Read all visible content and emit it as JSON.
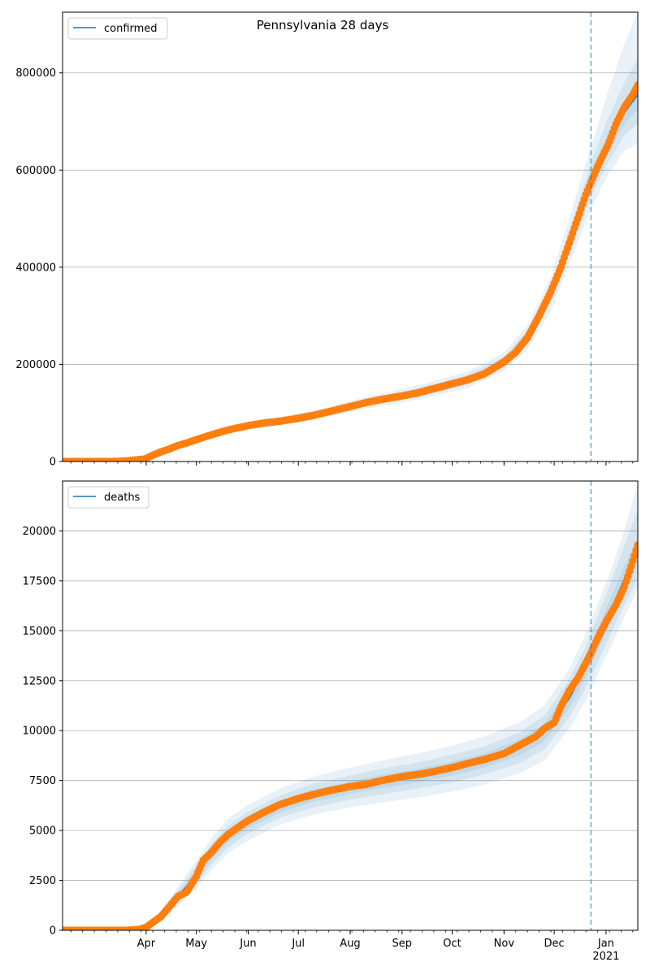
{
  "title": "Pennsylvania 28 days",
  "colors": {
    "model_line": "#1f77b4",
    "band": "#1f77b4",
    "observed": "#ff7f0e",
    "forecast_marker": "#1f77b4",
    "grid": "#b0b0b0"
  },
  "chart_data": [
    {
      "type": "line",
      "legend": "confirmed",
      "legend_position": "top-left",
      "grid": "y",
      "xlim": [
        "2020-02-11",
        "2021-01-20"
      ],
      "ylim": [
        0,
        925000
      ],
      "yticks": [
        0,
        200000,
        400000,
        600000,
        800000
      ],
      "ytick_labels": [
        "0",
        "200000",
        "400000",
        "600000",
        "800000"
      ],
      "forecast_start": "2020-12-23",
      "observed": {
        "x": [
          "2020-02-11",
          "2020-03-01",
          "2020-03-10",
          "2020-03-15",
          "2020-03-20",
          "2020-03-25",
          "2020-03-31",
          "2020-04-05",
          "2020-04-10",
          "2020-04-15",
          "2020-04-20",
          "2020-04-25",
          "2020-05-01",
          "2020-05-10",
          "2020-05-20",
          "2020-06-01",
          "2020-06-10",
          "2020-06-20",
          "2020-07-01",
          "2020-07-10",
          "2020-07-20",
          "2020-08-01",
          "2020-08-10",
          "2020-08-20",
          "2020-09-01",
          "2020-09-10",
          "2020-09-20",
          "2020-10-01",
          "2020-10-10",
          "2020-10-20",
          "2020-11-01",
          "2020-11-08",
          "2020-11-15",
          "2020-11-22",
          "2020-11-29",
          "2020-12-05",
          "2020-12-10",
          "2020-12-15",
          "2020-12-20",
          "2020-12-23",
          "2020-12-28",
          "2021-01-02",
          "2021-01-07",
          "2021-01-12",
          "2021-01-17",
          "2021-01-20"
        ],
        "y": [
          0,
          0,
          0,
          200,
          1200,
          3000,
          5000,
          13000,
          20000,
          26000,
          33000,
          38000,
          45000,
          55000,
          65000,
          74000,
          79000,
          83000,
          89000,
          95000,
          103000,
          113000,
          121000,
          128000,
          135000,
          141000,
          150000,
          160000,
          168000,
          180000,
          205000,
          225000,
          255000,
          300000,
          350000,
          400000,
          450000,
          500000,
          550000,
          575000,
          615000,
          650000,
          695000,
          730000,
          755000,
          775000
        ]
      },
      "model": {
        "x": [
          "2020-02-11",
          "2020-03-10",
          "2020-03-20",
          "2020-03-31",
          "2020-04-10",
          "2020-04-20",
          "2020-05-01",
          "2020-05-20",
          "2020-06-10",
          "2020-07-01",
          "2020-07-20",
          "2020-08-10",
          "2020-09-01",
          "2020-09-20",
          "2020-10-10",
          "2020-11-01",
          "2020-11-15",
          "2020-11-29",
          "2020-12-10",
          "2020-12-20",
          "2020-12-23",
          "2021-01-02",
          "2021-01-12",
          "2021-01-20"
        ],
        "y": [
          0,
          0,
          1200,
          5000,
          20000,
          33000,
          45000,
          65000,
          79000,
          89000,
          103000,
          121000,
          135000,
          150000,
          168000,
          205000,
          255000,
          345000,
          450000,
          550000,
          580000,
          655000,
          718000,
          755000
        ]
      },
      "bands": [
        {
          "level": "outer",
          "lower": [
            0,
            0,
            600,
            3500,
            16000,
            28000,
            39000,
            58000,
            71000,
            80000,
            93000,
            109000,
            121000,
            135000,
            151000,
            186000,
            230000,
            310000,
            405000,
            495000,
            520000,
            590000,
            640000,
            655000
          ],
          "upper": [
            0,
            0,
            1800,
            6500,
            24000,
            38000,
            51000,
            72000,
            87000,
            98000,
            113000,
            133000,
            149000,
            165000,
            185000,
            224000,
            280000,
            380000,
            500000,
            615000,
            645000,
            760000,
            860000,
            925000
          ]
        },
        {
          "level": "middle",
          "lower": [
            0,
            0,
            800,
            4000,
            17500,
            30000,
            41500,
            61000,
            74500,
            84000,
            97500,
            114000,
            127000,
            141000,
            158000,
            194000,
            241000,
            325000,
            425000,
            518000,
            545000,
            615000,
            672000,
            695000
          ],
          "upper": [
            0,
            0,
            1600,
            6000,
            22500,
            36000,
            48500,
            69000,
            83500,
            94000,
            108500,
            128000,
            143000,
            159000,
            178000,
            216000,
            269000,
            365000,
            475000,
            582000,
            615000,
            705000,
            780000,
            830000
          ]
        },
        {
          "level": "inner",
          "lower": [
            0,
            0,
            1000,
            4500,
            18800,
            31500,
            43200,
            63000,
            76800,
            86500,
            100200,
            117500,
            131000,
            145500,
            163000,
            199500,
            248000,
            335000,
            438000,
            534000,
            562000,
            635000,
            695000,
            725000
          ],
          "upper": [
            0,
            0,
            1400,
            5500,
            21200,
            34500,
            46800,
            67000,
            81200,
            91500,
            105800,
            124500,
            139000,
            154500,
            173000,
            210500,
            262000,
            355000,
            462000,
            566000,
            598000,
            675000,
            741000,
            785000
          ]
        }
      ]
    },
    {
      "type": "line",
      "legend": "deaths",
      "legend_position": "top-left",
      "grid": "y",
      "xlim": [
        "2020-02-11",
        "2021-01-20"
      ],
      "ylim": [
        0,
        22500
      ],
      "yticks": [
        0,
        2500,
        5000,
        7500,
        10000,
        12500,
        15000,
        17500,
        20000
      ],
      "ytick_labels": [
        "0",
        "2500",
        "5000",
        "7500",
        "10000",
        "12500",
        "15000",
        "17500",
        "20000"
      ],
      "xticks": [
        "2020-04-01",
        "2020-05-01",
        "2020-06-01",
        "2020-07-01",
        "2020-08-01",
        "2020-09-01",
        "2020-10-01",
        "2020-11-01",
        "2020-12-01",
        "2021-01-01"
      ],
      "xtick_labels": [
        "Apr",
        "May",
        "Jun",
        "Jul",
        "Aug",
        "Sep",
        "Oct",
        "Nov",
        "Dec",
        "Jan\n2021"
      ],
      "forecast_start": "2020-12-23",
      "observed": {
        "x": [
          "2020-02-11",
          "2020-03-10",
          "2020-03-20",
          "2020-03-28",
          "2020-04-01",
          "2020-04-05",
          "2020-04-10",
          "2020-04-15",
          "2020-04-20",
          "2020-04-25",
          "2020-05-01",
          "2020-05-05",
          "2020-05-10",
          "2020-05-15",
          "2020-05-20",
          "2020-05-25",
          "2020-06-01",
          "2020-06-10",
          "2020-06-20",
          "2020-07-01",
          "2020-07-10",
          "2020-07-20",
          "2020-08-01",
          "2020-08-10",
          "2020-08-20",
          "2020-09-01",
          "2020-09-10",
          "2020-09-20",
          "2020-10-01",
          "2020-10-10",
          "2020-10-20",
          "2020-11-01",
          "2020-11-10",
          "2020-11-20",
          "2020-11-25",
          "2020-12-01",
          "2020-12-05",
          "2020-12-10",
          "2020-12-15",
          "2020-12-20",
          "2020-12-23",
          "2020-12-28",
          "2021-01-02",
          "2021-01-07",
          "2021-01-12",
          "2021-01-17",
          "2021-01-20"
        ],
        "y": [
          0,
          0,
          0,
          50,
          150,
          400,
          700,
          1200,
          1700,
          1900,
          2700,
          3500,
          3900,
          4400,
          4800,
          5100,
          5500,
          5900,
          6300,
          6600,
          6800,
          7000,
          7200,
          7300,
          7500,
          7700,
          7800,
          7950,
          8150,
          8350,
          8550,
          8850,
          9250,
          9700,
          10100,
          10400,
          11200,
          12000,
          12600,
          13400,
          13900,
          14800,
          15600,
          16300,
          17200,
          18500,
          19300
        ]
      },
      "model": {
        "x": [
          "2020-02-11",
          "2020-03-20",
          "2020-04-01",
          "2020-04-10",
          "2020-04-20",
          "2020-05-01",
          "2020-05-10",
          "2020-05-20",
          "2020-06-01",
          "2020-06-20",
          "2020-07-10",
          "2020-08-01",
          "2020-08-20",
          "2020-09-10",
          "2020-10-01",
          "2020-10-20",
          "2020-11-10",
          "2020-11-25",
          "2020-12-10",
          "2020-12-20",
          "2020-12-23",
          "2021-01-02",
          "2021-01-12",
          "2021-01-20"
        ],
        "y": [
          0,
          0,
          150,
          700,
          1700,
          2800,
          3800,
          4700,
          5400,
          6200,
          6750,
          7150,
          7450,
          7750,
          8100,
          8500,
          9150,
          9900,
          11600,
          13200,
          13800,
          15700,
          17600,
          19000
        ]
      },
      "bands": [
        {
          "level": "outer",
          "lower": [
            0,
            0,
            60,
            450,
            1250,
            2100,
            3000,
            3850,
            4500,
            5300,
            5800,
            6150,
            6400,
            6650,
            6950,
            7300,
            7850,
            8500,
            10100,
            11550,
            12100,
            13900,
            15700,
            17100
          ],
          "upper": [
            0,
            0,
            260,
            1000,
            2200,
            3500,
            4600,
            5600,
            6300,
            7100,
            7700,
            8150,
            8500,
            8850,
            9250,
            9700,
            10400,
            11250,
            13100,
            14850,
            15500,
            17600,
            20000,
            22400
          ]
        },
        {
          "level": "middle",
          "lower": [
            0,
            0,
            90,
            550,
            1420,
            2350,
            3300,
            4150,
            4850,
            5650,
            6150,
            6550,
            6800,
            7100,
            7400,
            7800,
            8350,
            9050,
            10650,
            12150,
            12700,
            14500,
            16300,
            17600
          ],
          "upper": [
            0,
            0,
            220,
            880,
            2000,
            3250,
            4300,
            5250,
            5950,
            6750,
            7350,
            7750,
            8100,
            8400,
            8800,
            9200,
            9900,
            10750,
            12550,
            14250,
            14900,
            17000,
            19300,
            21100
          ]
        },
        {
          "level": "inner",
          "lower": [
            0,
            0,
            110,
            620,
            1560,
            2580,
            3550,
            4430,
            5120,
            5920,
            6450,
            6850,
            7120,
            7420,
            7750,
            8150,
            8750,
            9470,
            11120,
            12670,
            13250,
            15100,
            16950,
            18300
          ],
          "upper": [
            0,
            0,
            190,
            780,
            1840,
            3020,
            4050,
            4970,
            5680,
            6480,
            7050,
            7450,
            7780,
            8080,
            8450,
            8850,
            9550,
            10330,
            12080,
            13730,
            14350,
            16300,
            18250,
            19700
          ]
        }
      ]
    }
  ]
}
